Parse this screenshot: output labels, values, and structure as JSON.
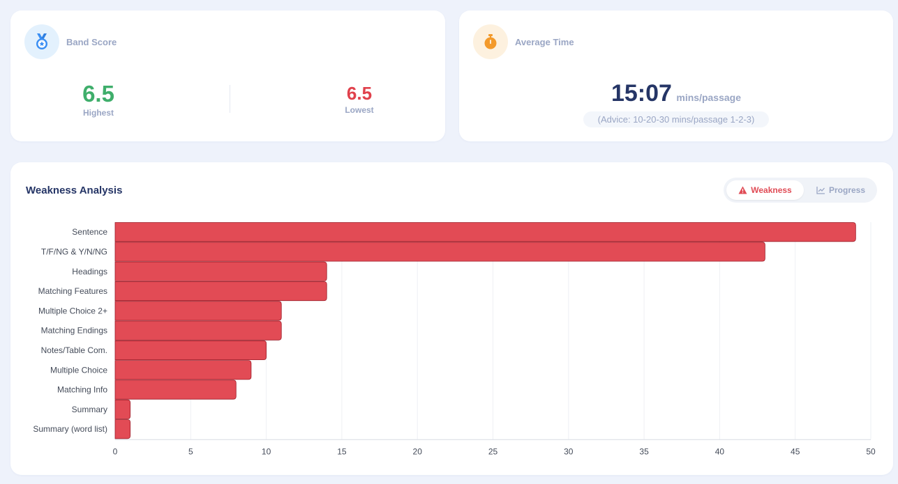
{
  "band_score": {
    "title": "Band Score",
    "highest_value": "6.5",
    "highest_label": "Highest",
    "lowest_value": "6.5",
    "lowest_label": "Lowest",
    "icon": "medal-icon",
    "highest_color": "#3fae6b",
    "lowest_color": "#e0414c"
  },
  "average_time": {
    "title": "Average Time",
    "value": "15:07",
    "unit": "mins/passage",
    "advice": "(Advice: 10-20-30 mins/passage 1-2-3)",
    "icon": "stopwatch-icon"
  },
  "weakness": {
    "title": "Weakness Analysis",
    "tabs": [
      {
        "label": "Weakness",
        "icon": "warning-icon",
        "active": true
      },
      {
        "label": "Progress",
        "icon": "line-chart-icon",
        "active": false
      }
    ]
  },
  "chart_data": {
    "type": "bar",
    "orientation": "horizontal",
    "categories": [
      "Sentence",
      "T/F/NG & Y/N/NG",
      "Headings",
      "Matching Features",
      "Multiple Choice 2+",
      "Matching Endings",
      "Notes/Table Com.",
      "Multiple Choice",
      "Matching Info",
      "Summary",
      "Summary (word list)"
    ],
    "values": [
      49,
      43,
      14,
      14,
      11,
      11,
      10,
      9,
      8,
      1,
      1
    ],
    "xlim": [
      0,
      50
    ],
    "xticks": [
      0,
      5,
      10,
      15,
      20,
      25,
      30,
      35,
      40,
      45,
      50
    ],
    "grid": "vertical",
    "bar_color": "#e24b55",
    "bar_edge": "#9c1c28"
  }
}
